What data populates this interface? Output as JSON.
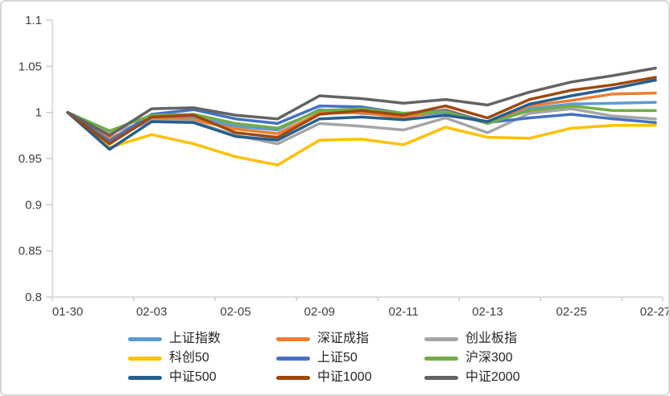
{
  "chart_data": {
    "type": "line",
    "x_labels": [
      "01-30",
      "",
      "02-03",
      "",
      "02-05",
      "",
      "02-09",
      "",
      "02-11",
      "",
      "02-13",
      "",
      "02-25",
      "",
      "02-27"
    ],
    "series": [
      {
        "name": "上证指数",
        "color": "#5B9BD5",
        "values": [
          1.0,
          0.971,
          0.992,
          0.995,
          0.985,
          0.981,
          1.003,
          0.999,
          0.996,
          1.0,
          0.99,
          1.004,
          1.009,
          1.01,
          1.011
        ]
      },
      {
        "name": "深证成指",
        "color": "#ED7D31",
        "values": [
          1.0,
          0.972,
          0.993,
          0.992,
          0.982,
          0.977,
          0.999,
          1.0,
          0.994,
          1.003,
          0.989,
          1.007,
          1.013,
          1.02,
          1.021
        ]
      },
      {
        "name": "创业板指",
        "color": "#A5A5A5",
        "values": [
          1.0,
          0.978,
          0.991,
          0.99,
          0.975,
          0.966,
          0.988,
          0.985,
          0.981,
          0.994,
          0.978,
          0.999,
          1.004,
          0.996,
          0.993
        ]
      },
      {
        "name": "科创50",
        "color": "#FFC000",
        "values": [
          1.0,
          0.962,
          0.976,
          0.966,
          0.952,
          0.943,
          0.97,
          0.971,
          0.965,
          0.984,
          0.973,
          0.972,
          0.983,
          0.986,
          0.986
        ]
      },
      {
        "name": "上证50",
        "color": "#4472C4",
        "values": [
          1.0,
          0.969,
          0.998,
          1.003,
          0.993,
          0.988,
          1.007,
          1.006,
          0.999,
          1.002,
          0.989,
          0.994,
          0.998,
          0.993,
          0.989
        ]
      },
      {
        "name": "沪深300",
        "color": "#70AD47",
        "values": [
          1.0,
          0.98,
          0.997,
          0.998,
          0.988,
          0.983,
          1.002,
          1.004,
          0.999,
          1.001,
          0.988,
          1.002,
          1.007,
          1.002,
          1.002
        ]
      },
      {
        "name": "中证500",
        "color": "#255E91",
        "values": [
          1.0,
          0.96,
          0.99,
          0.989,
          0.974,
          0.97,
          0.993,
          0.995,
          0.992,
          0.997,
          0.99,
          1.009,
          1.018,
          1.026,
          1.035
        ]
      },
      {
        "name": "中证1000",
        "color": "#9E480E",
        "values": [
          1.0,
          0.966,
          0.995,
          0.997,
          0.978,
          0.973,
          0.998,
          1.002,
          0.997,
          1.007,
          0.994,
          1.014,
          1.024,
          1.03,
          1.038
        ]
      },
      {
        "name": "中证2000",
        "color": "#636363",
        "values": [
          1.0,
          0.975,
          1.004,
          1.005,
          0.997,
          0.993,
          1.018,
          1.015,
          1.01,
          1.014,
          1.008,
          1.022,
          1.033,
          1.04,
          1.048
        ]
      }
    ],
    "y_axis": {
      "min": 0.8,
      "max": 1.1,
      "step": 0.05,
      "tick_labels": [
        "1.1",
        "1.05",
        "1",
        "0.95",
        "0.9",
        "0.85",
        "0.8"
      ]
    },
    "legend": {
      "position": "bottom",
      "columns": 3,
      "order": "row-major"
    },
    "grid": false,
    "title": "",
    "xlabel": "",
    "ylabel": ""
  },
  "style": {
    "axis_line_color": "#d9d9d9",
    "tick_mark_color": "#cccccc",
    "tick_text_color": "#3f3f3f",
    "line_width": 3.5,
    "frame_border_color": "#d7d7d9",
    "background": "#ffffff"
  }
}
